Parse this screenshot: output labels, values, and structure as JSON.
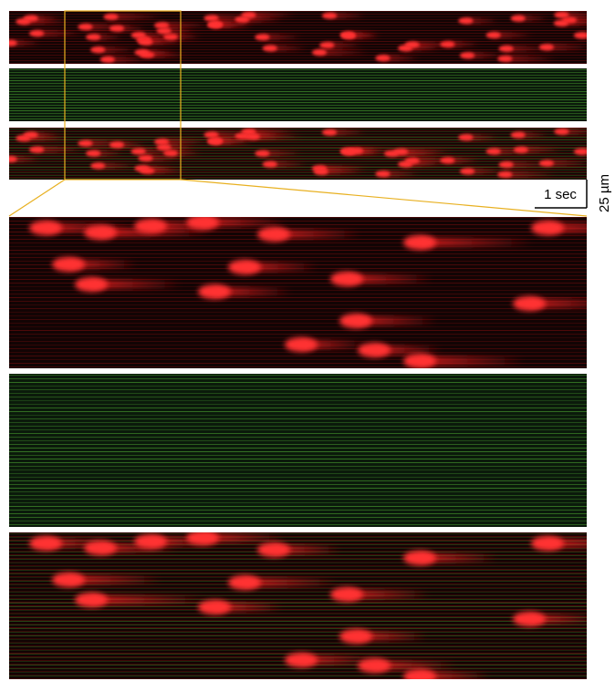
{
  "scale_bar": {
    "time": "1 sec",
    "length": "25 µm"
  }
}
